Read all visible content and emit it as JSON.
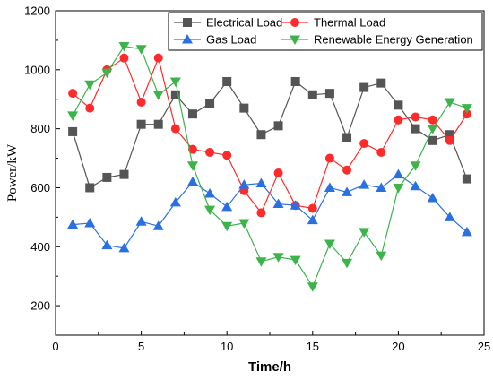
{
  "chart_data": {
    "type": "line",
    "xlabel": "Time/h",
    "ylabel": "Power/kW",
    "xlim": [
      0,
      25
    ],
    "ylim": [
      100,
      1200
    ],
    "xticks": [
      0,
      5,
      10,
      15,
      20,
      25
    ],
    "yticks": [
      200,
      400,
      600,
      800,
      1000,
      1200
    ],
    "grid": false,
    "legend_position": "top-right",
    "x": [
      1,
      2,
      3,
      4,
      5,
      6,
      7,
      8,
      9,
      10,
      11,
      12,
      13,
      14,
      15,
      16,
      17,
      18,
      19,
      20,
      21,
      22,
      23,
      24
    ],
    "series": [
      {
        "name": "Electrical Load",
        "color": "#555555",
        "marker": "square",
        "values": [
          790,
          600,
          635,
          645,
          815,
          815,
          915,
          850,
          885,
          960,
          870,
          780,
          810,
          960,
          915,
          920,
          770,
          940,
          955,
          880,
          800,
          760,
          780,
          630
        ]
      },
      {
        "name": "Thermal Load",
        "color": "#ff2a2a",
        "marker": "circle",
        "values": [
          920,
          870,
          1000,
          1040,
          890,
          1040,
          800,
          730,
          720,
          710,
          590,
          515,
          650,
          540,
          530,
          700,
          660,
          750,
          720,
          830,
          840,
          830,
          760,
          850
        ]
      },
      {
        "name": "Gas Load",
        "color": "#2a70e0",
        "marker": "triangle-up",
        "values": [
          475,
          480,
          405,
          395,
          485,
          470,
          550,
          620,
          580,
          535,
          610,
          615,
          545,
          540,
          490,
          600,
          585,
          610,
          600,
          645,
          605,
          565,
          500,
          450
        ]
      },
      {
        "name": "Renewable Energy Generation",
        "color": "#3cb44b",
        "marker": "triangle-down",
        "values": [
          845,
          950,
          990,
          1080,
          1070,
          915,
          960,
          675,
          525,
          470,
          480,
          350,
          365,
          355,
          265,
          410,
          345,
          450,
          370,
          600,
          675,
          800,
          890,
          870
        ]
      }
    ]
  }
}
